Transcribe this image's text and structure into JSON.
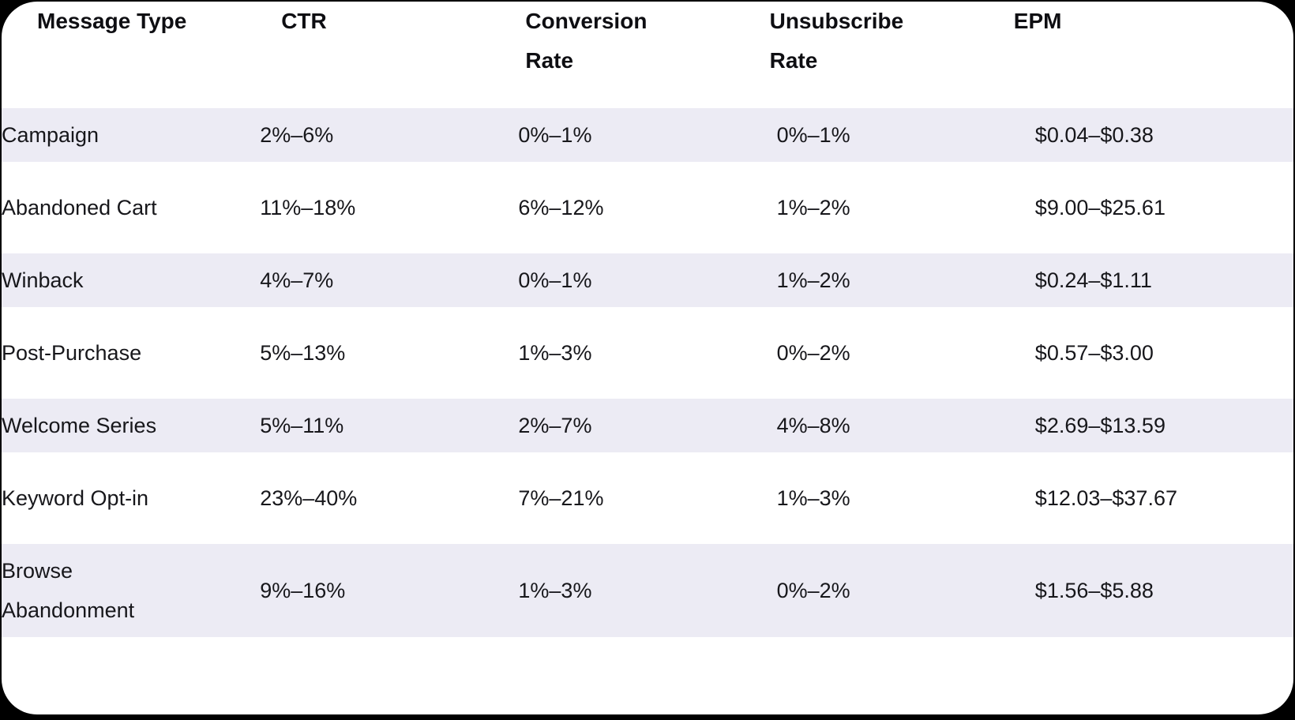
{
  "page": {
    "canvas_background": "#000000",
    "card_background": "#ffffff",
    "stripe_color": "#ECEBF4",
    "header_text_color": "#0e0e12",
    "body_text_color": "#17171b"
  },
  "table": {
    "columns": [
      {
        "label": "Message Type"
      },
      {
        "label": "CTR"
      },
      {
        "label": "Conversion\nRate"
      },
      {
        "label": "Unsubscribe\nRate"
      },
      {
        "label": "EPM"
      }
    ],
    "rows": [
      {
        "cells": [
          "Campaign",
          "2%–6%",
          "0%–1%",
          "0%–1%",
          "$0.04–$0.38"
        ]
      },
      {
        "cells": [
          "Abandoned Cart",
          "11%–18%",
          "6%–12%",
          "1%–2%",
          "$9.00–$25.61"
        ]
      },
      {
        "cells": [
          "Winback",
          "4%–7%",
          "0%–1%",
          "1%–2%",
          "$0.24–$1.11"
        ]
      },
      {
        "cells": [
          "Post-Purchase",
          "5%–13%",
          "1%–3%",
          "0%–2%",
          "$0.57–$3.00"
        ]
      },
      {
        "cells": [
          "Welcome Series",
          "5%–11%",
          "2%–7%",
          "4%–8%",
          "$2.69–$13.59"
        ]
      },
      {
        "cells": [
          "Keyword Opt-in",
          "23%–40%",
          "7%–21%",
          "1%–3%",
          "$12.03–$37.67"
        ]
      },
      {
        "cells": [
          "Browse Abandonment",
          "9%–16%",
          "1%–3%",
          "0%–2%",
          "$1.56–$5.88"
        ]
      }
    ]
  }
}
